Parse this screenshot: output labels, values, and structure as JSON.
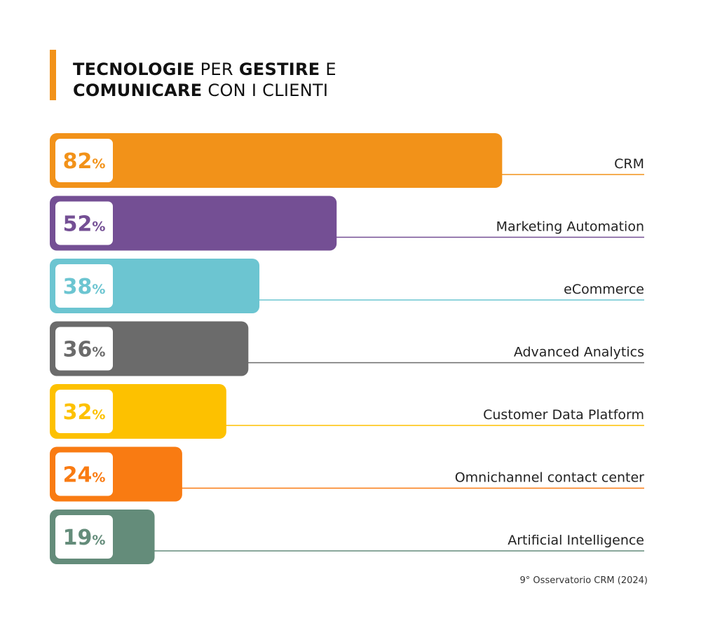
{
  "title": {
    "line1_bold": "TECNOLOGIE",
    "line1_mid": " PER ",
    "line1_bold2": "GESTIRE",
    "line1_end": " E",
    "line2_bold": "COMUNICARE",
    "line2_end": " CON I CLIENTI"
  },
  "source": "9° Osservatorio CRM (2024)",
  "colors": {
    "accent": "#f29219",
    "crm": "#f29219",
    "marketing_automation": "#744f94",
    "ecommerce": "#6cc5d1",
    "advanced_analytics": "#6b6b6b",
    "customer_data_platform": "#fdc100",
    "omnichannel": "#f97b12",
    "ai": "#648c7a"
  },
  "chart_data": {
    "type": "bar",
    "orientation": "horizontal",
    "unit": "%",
    "categories": [
      "CRM",
      "Marketing Automation",
      "eCommerce",
      "Advanced Analytics",
      "Customer Data Platform",
      "Omnichannel contact center",
      "Artificial Intelligence"
    ],
    "values": [
      82,
      52,
      38,
      36,
      32,
      24,
      19
    ],
    "value_labels": [
      "82",
      "52",
      "38",
      "36",
      "32",
      "24",
      "19"
    ],
    "series_colors": [
      "#f29219",
      "#744f94",
      "#6cc5d1",
      "#6b6b6b",
      "#fdc100",
      "#f97b12",
      "#648c7a"
    ],
    "percent_symbol": "%",
    "grid": false,
    "legend": "none"
  }
}
